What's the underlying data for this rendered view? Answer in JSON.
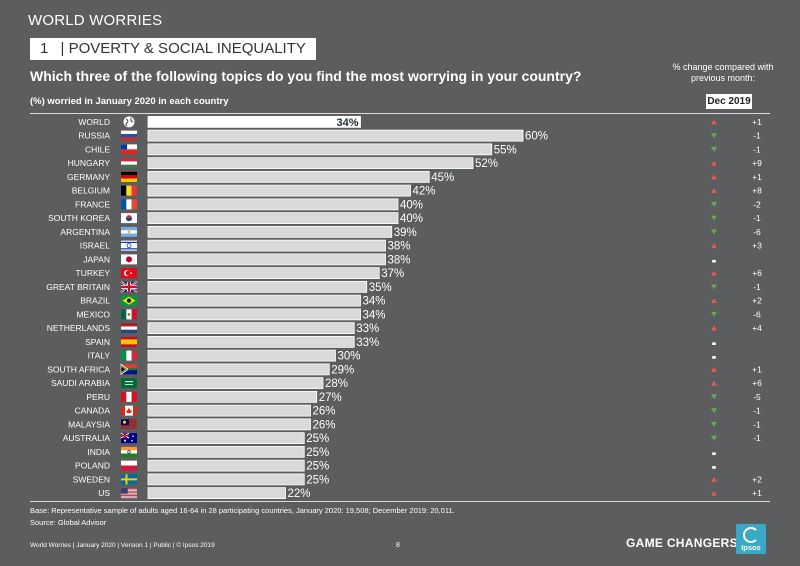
{
  "header": {
    "section": "WORLD WORRIES",
    "topic_number": "1",
    "topic": "| POVERTY & SOCIAL INEQUALITY",
    "question": "Which three of the following topics do you find the most worrying in your country?",
    "subhead": "(%) worried in January 2020 in each country",
    "change_header": "% change compared with previous month:",
    "change_period": "Dec 2019"
  },
  "colors": {
    "background": "#5b5d5e",
    "bar": "#d9d9d9",
    "world_bar": "#ffffff",
    "up": "#e05a5a",
    "down": "#6aa84f",
    "label_dark": "#1f2a36"
  },
  "chart_data": {
    "type": "bar",
    "orientation": "horizontal",
    "categories": [
      "WORLD",
      "RUSSIA",
      "CHILE",
      "HUNGARY",
      "GERMANY",
      "BELGIUM",
      "FRANCE",
      "SOUTH KOREA",
      "ARGENTINA",
      "ISRAEL",
      "JAPAN",
      "TURKEY",
      "GREAT BRITAIN",
      "BRAZIL",
      "MEXICO",
      "NETHERLANDS",
      "SPAIN",
      "ITALY",
      "SOUTH AFRICA",
      "SAUDI ARABIA",
      "PERU",
      "CANADA",
      "MALAYSIA",
      "AUSTRALIA",
      "INDIA",
      "POLAND",
      "SWEDEN",
      "US"
    ],
    "values": [
      34,
      60,
      55,
      52,
      45,
      42,
      40,
      40,
      39,
      38,
      38,
      37,
      35,
      34,
      34,
      33,
      33,
      30,
      29,
      28,
      27,
      26,
      26,
      25,
      25,
      25,
      25,
      22
    ],
    "value_labels": [
      "34%",
      "60%",
      "55%",
      "52%",
      "45%",
      "42%",
      "40%",
      "40%",
      "39%",
      "38%",
      "38%",
      "37%",
      "35%",
      "34%",
      "34%",
      "33%",
      "33%",
      "30%",
      "29%",
      "28%",
      "27%",
      "26%",
      "26%",
      "25%",
      "25%",
      "25%",
      "25%",
      "22%"
    ],
    "change_direction": [
      "up",
      "down",
      "down",
      "up",
      "up",
      "up",
      "down",
      "down",
      "down",
      "up",
      "same",
      "up",
      "down",
      "up",
      "down",
      "up",
      "same",
      "same",
      "up",
      "up",
      "down",
      "down",
      "down",
      "down",
      "same",
      "same",
      "up",
      "up"
    ],
    "change_labels": [
      "+1",
      "-1",
      "-1",
      "+9",
      "+1",
      "+8",
      "-2",
      "-1",
      "-6",
      "+3",
      "",
      "+6",
      "-1",
      "+2",
      "-6",
      "+4",
      "",
      "",
      "+1",
      "+6",
      "-5",
      "-1",
      "-1",
      "-1",
      "",
      "",
      "+2",
      "+1"
    ],
    "flags": [
      "globe",
      "russia",
      "chile",
      "hungary",
      "germany",
      "belgium",
      "france",
      "south-korea",
      "argentina",
      "israel",
      "japan",
      "turkey",
      "great-britain",
      "brazil",
      "mexico",
      "netherlands",
      "spain",
      "italy",
      "south-africa",
      "saudi-arabia",
      "peru",
      "canada",
      "malaysia",
      "australia",
      "india",
      "poland",
      "sweden",
      "us"
    ],
    "xlim": [
      0,
      100
    ]
  },
  "footer": {
    "base": "Base: Representative sample of adults aged 16-64 in 28 participating countries, January 2020: 19,508; December 2019: 20,011.",
    "source": "Source: Global Advisor",
    "meta": "World Worries | January 2020 | Version 1 | Public | © Ipsos 2019",
    "page": "8",
    "tagline": "GAME CHANGERS",
    "logo": "Ipsos"
  }
}
